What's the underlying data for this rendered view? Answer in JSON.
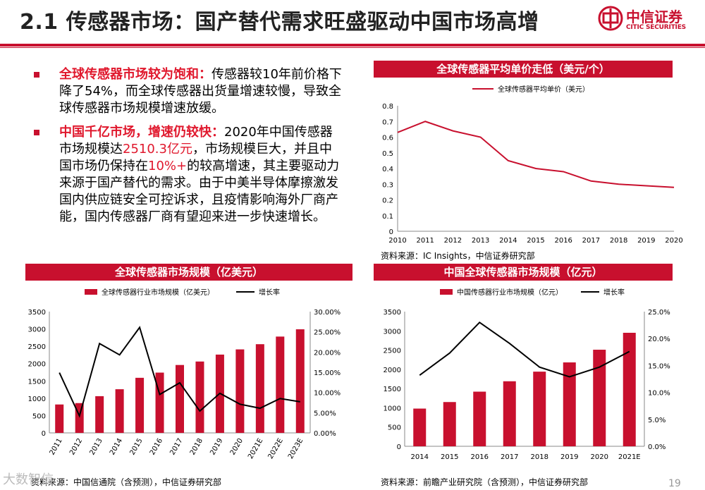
{
  "header": {
    "title": "2.1 传感器市场：国产替代需求旺盛驱动中国市场高增",
    "logo_cn": "中信证券",
    "logo_en": "CITIC SECURITIES"
  },
  "bullets": [
    {
      "highlight": "全球传感器市场较为饱和：",
      "text": "传感器较10年前价格下降了54%，而全球传感器出货量增速较慢，导致全球传感器市场规模增速放缓。"
    },
    {
      "highlight": "中国千亿市场，增速仍较快：",
      "text_a": "2020年中国传感器市场规模达",
      "red_a": "2510.3亿元",
      "text_b": "，市场规模巨大，并且中国市场仍保持在",
      "red_b": "10%+",
      "text_c": "的较高增速，其主要驱动力来源于国产替代的需求。由于中美半导体摩擦激发国内供应链安全可控诉求，且疫情影响海外厂商产能，国内传感器厂商有望迎来进一步快速增长。"
    }
  ],
  "price_chart": {
    "header": "全球传感器平均单价走低（美元/个）",
    "source": "资料来源：IC Insights，中信证券研究部"
  },
  "global_chart": {
    "header": "全球传感器市场规模（亿美元）",
    "source": "资料来源：中国信通院（含预测），中信证券研究部"
  },
  "china_chart": {
    "header": "中国全球传感器市场规模（亿元）",
    "source": "资料来源：前瞻产业研究院（含预测），中信证券研究部"
  },
  "footer": {
    "watermark": "大数智信",
    "page": "19"
  },
  "colors": {
    "accent": "#c8102e",
    "line": "#000000"
  },
  "chart_data": [
    {
      "type": "line",
      "x": [
        "2010",
        "2011",
        "2012",
        "2013",
        "2014",
        "2015",
        "2016",
        "2017",
        "2018",
        "2019",
        "2020"
      ],
      "series": [
        {
          "name": "全球传感器平均单价（美元）",
          "values": [
            0.63,
            0.7,
            0.64,
            0.6,
            0.45,
            0.4,
            0.38,
            0.32,
            0.3,
            0.29,
            0.28
          ]
        }
      ],
      "ylim": [
        0,
        0.8
      ],
      "yticks": [
        "0",
        "0.1",
        "0.2",
        "0.3",
        "0.4",
        "0.5",
        "0.6",
        "0.7",
        "0.8"
      ],
      "legend": "top"
    },
    {
      "type": "bar",
      "categories": [
        "2011",
        "2012",
        "2013",
        "2014",
        "2015",
        "2016",
        "2017",
        "2018",
        "2019",
        "2020",
        "2021E",
        "2022E",
        "2023E"
      ],
      "series": [
        {
          "name": "全球传感器行业市场规模（亿美元）",
          "values": [
            820,
            860,
            1060,
            1260,
            1590,
            1740,
            1960,
            2060,
            2260,
            2410,
            2560,
            2780,
            2990
          ]
        },
        {
          "name": "增长率",
          "values": [
            14.9,
            4.2,
            22.1,
            19.3,
            26.1,
            9.5,
            12.4,
            5.4,
            9.8,
            7.1,
            6.1,
            8.5,
            7.7
          ]
        }
      ],
      "ylim": [
        0,
        3500
      ],
      "y2lim": [
        0,
        30
      ],
      "yticks": [
        "0",
        "500",
        "1000",
        "1500",
        "2000",
        "2500",
        "3000",
        "3500"
      ],
      "y2ticks": [
        "0.00%",
        "5.00%",
        "10.00%",
        "15.00%",
        "20.00%",
        "25.00%",
        "30.00%"
      ],
      "legend": "top"
    },
    {
      "type": "bar",
      "categories": [
        "2014",
        "2015",
        "2016",
        "2017",
        "2018",
        "2019",
        "2020",
        "2021E"
      ],
      "series": [
        {
          "name": "中国传感器行业市场规模（亿元）",
          "values": [
            980,
            1150,
            1420,
            1690,
            1940,
            2180,
            2510,
            2950
          ]
        },
        {
          "name": "增长率",
          "values": [
            13.2,
            17.3,
            23.0,
            19.1,
            14.7,
            12.9,
            14.7,
            17.6
          ]
        }
      ],
      "ylim": [
        0,
        3500
      ],
      "y2lim": [
        0,
        25
      ],
      "yticks": [
        "0",
        "500",
        "1000",
        "1500",
        "2000",
        "2500",
        "3000",
        "3500"
      ],
      "y2ticks": [
        "0.0%",
        "5.0%",
        "10.0%",
        "15.0%",
        "20.0%",
        "25.0%"
      ],
      "legend": "top"
    }
  ]
}
